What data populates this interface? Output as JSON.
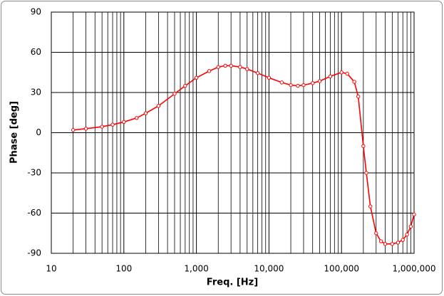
{
  "chart_data": {
    "type": "line",
    "xlabel": "Freq. [Hz]",
    "ylabel": "Phase [deg]",
    "xscale": "log",
    "grid": true,
    "minor_grid": true,
    "xlim": [
      10,
      1000000
    ],
    "xticks": [
      10,
      100,
      {
        "value": 1000,
        "label": "1,000"
      },
      {
        "value": 10000,
        "label": "10,000"
      },
      {
        "value": 100000,
        "label": "100,000"
      },
      {
        "value": 1000000,
        "label": "1,000,000"
      }
    ],
    "ylim": [
      -90,
      90
    ],
    "yticks": [
      -90,
      -60,
      -30,
      0,
      30,
      60,
      90
    ],
    "x": [
      20,
      30,
      50,
      70,
      100,
      150,
      200,
      300,
      500,
      700,
      1000,
      1500,
      2000,
      2500,
      3000,
      4000,
      5000,
      7000,
      10000,
      15000,
      20000,
      25000,
      30000,
      40000,
      50000,
      70000,
      100000,
      120000,
      150000,
      170000,
      200000,
      220000,
      250000,
      300000,
      350000,
      400000,
      500000,
      600000,
      700000,
      800000,
      900000,
      1000000
    ],
    "series": [
      {
        "color": "#ff0000",
        "values": [
          2,
          3,
          4.5,
          6,
          8,
          11,
          14.5,
          20,
          29,
          35,
          41,
          46,
          49,
          50,
          50,
          49,
          47.5,
          44.5,
          41,
          37.5,
          35.5,
          35,
          35.5,
          37,
          38.5,
          42,
          45,
          44,
          38,
          27,
          -10,
          -30,
          -55,
          -75,
          -81,
          -83,
          -83,
          -82,
          -80,
          -76,
          -70,
          -61
        ]
      }
    ]
  }
}
